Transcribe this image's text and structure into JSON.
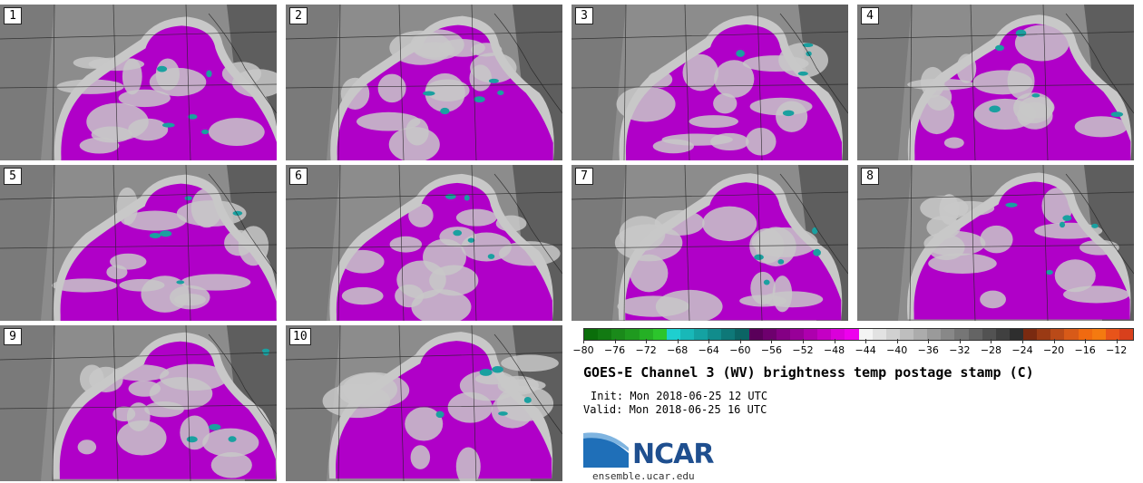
{
  "panels": [
    {
      "label": "1"
    },
    {
      "label": "2"
    },
    {
      "label": "3"
    },
    {
      "label": "4"
    },
    {
      "label": "5"
    },
    {
      "label": "6"
    },
    {
      "label": "7"
    },
    {
      "label": "8"
    },
    {
      "label": "9"
    },
    {
      "label": "10"
    }
  ],
  "title": "GOES-E Channel 3 (WV) brightness temp postage stamp (C)",
  "init": "Init: Mon 2018-06-25 12 UTC",
  "valid": "Valid: Mon 2018-06-25 16 UTC",
  "colorbar": {
    "ticks": [
      "−80",
      "−76",
      "−72",
      "−68",
      "−64",
      "−60",
      "−56",
      "−52",
      "−48",
      "−44",
      "−40",
      "−36",
      "−32",
      "−28",
      "−24",
      "−20",
      "−16",
      "−12"
    ],
    "tick_values": [
      -80,
      -76,
      -72,
      -68,
      -64,
      -60,
      -56,
      -52,
      -48,
      -44,
      -40,
      -36,
      -32,
      -28,
      -24,
      -20,
      -16,
      -12
    ],
    "range": [
      -80,
      -10
    ],
    "colors": [
      "#0a6e0a",
      "#127a12",
      "#1a8a1a",
      "#1f9a1f",
      "#25b025",
      "#2cc52c",
      "#1ecfcf",
      "#18b8b8",
      "#14a2a2",
      "#118c8c",
      "#0e7878",
      "#0b6464",
      "#5a005a",
      "#6e006e",
      "#840084",
      "#980098",
      "#ae00ae",
      "#c400c4",
      "#da00da",
      "#ee00ee",
      "#f4f4f4",
      "#e2e2e2",
      "#d0d0d0",
      "#bebebe",
      "#acacac",
      "#9a9a9a",
      "#888888",
      "#767676",
      "#646464",
      "#525252",
      "#404040",
      "#2e2e2e",
      "#7a2a10",
      "#9a3a14",
      "#ba4a18",
      "#d85a18",
      "#f06a10",
      "#f47a10",
      "#e8541a",
      "#d8401c"
    ]
  },
  "colors": {
    "wv_dry": "#8c8c8c",
    "wv_mid": "#c8c8c8",
    "wv_moist": "#b000c8",
    "wv_cold": "#1aa0a0"
  },
  "logo": {
    "text": "NCAR",
    "url": "ensemble.ucar.edu"
  }
}
